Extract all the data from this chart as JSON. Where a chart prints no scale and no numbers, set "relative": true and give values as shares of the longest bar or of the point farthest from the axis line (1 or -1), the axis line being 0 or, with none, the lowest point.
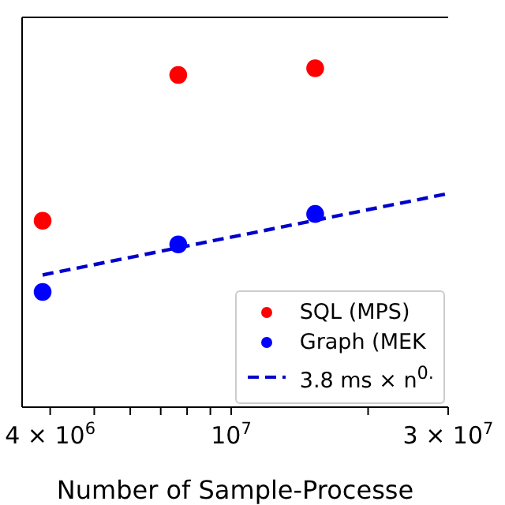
{
  "chart_data": {
    "type": "scatter",
    "xlabel": "Number of Sample-Processe",
    "log": "x",
    "xlim": [
      3470000,
      30000000
    ],
    "xticks": [
      {
        "value": 4000000,
        "label": "4 × 10$^{6}$"
      },
      {
        "value": 5000000,
        "label": null
      },
      {
        "value": 6000000,
        "label": null
      },
      {
        "value": 7000000,
        "label": null
      },
      {
        "value": 8000000,
        "label": null
      },
      {
        "value": 9000000,
        "label": null
      },
      {
        "value": 10000000,
        "label": "10$^{7}$"
      },
      {
        "value": 20000000,
        "label": null
      },
      {
        "value": 30000000,
        "label": "3 × 10$^{7}$"
      }
    ],
    "x": [
      3850000,
      7650000,
      15300000
    ],
    "relative": true,
    "marker": "circle",
    "legend": "bottom right",
    "series": [
      {
        "name": "SQL (MPS)",
        "color": "#ff0000",
        "values": [
          0.55,
          0.98,
          1
        ]
      },
      {
        "name": "Graph (MEK",
        "color": "#0000ff",
        "values": [
          0.34,
          0.48,
          0.57
        ]
      },
      {
        "name": "3.8 ms × n$^{0.}$",
        "type": "line",
        "color": "#0000cc",
        "marker": "none",
        "line_style": "dashed",
        "x": [
          3850000,
          30000000
        ],
        "values": [
          0.39,
          0.63
        ]
      }
    ]
  }
}
